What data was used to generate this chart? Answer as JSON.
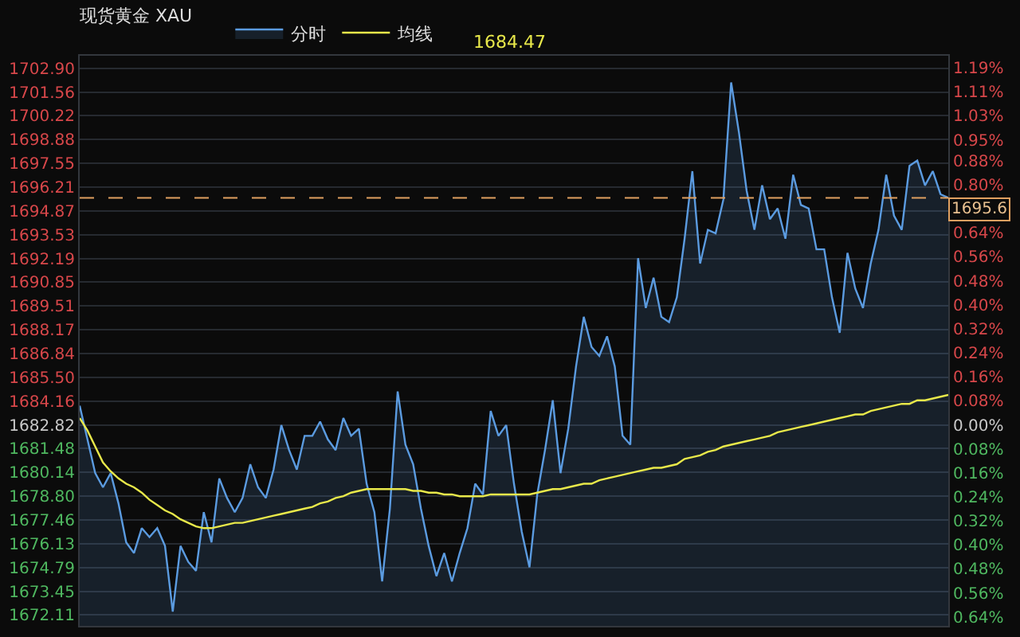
{
  "chart_data": {
    "type": "area",
    "title": "现货黄金 XAU",
    "annotations": [
      "1684.47"
    ],
    "categories": [
      null,
      null,
      null,
      null,
      null,
      null,
      null,
      null,
      null,
      null,
      null,
      null,
      null,
      null,
      null,
      null,
      null,
      null,
      null,
      null,
      null,
      null,
      null,
      null,
      null,
      null,
      null,
      null,
      null,
      null,
      null,
      null,
      null,
      null,
      null,
      null,
      null,
      null,
      null,
      null,
      null,
      null,
      null,
      null,
      null,
      null,
      null,
      null,
      null,
      null,
      null,
      null,
      null,
      null,
      null,
      null,
      null,
      null,
      null,
      null,
      null,
      null,
      null,
      null,
      null,
      null,
      null,
      null,
      null,
      null,
      null,
      null,
      null,
      null,
      null,
      null,
      null,
      null,
      null,
      null,
      null,
      null,
      null,
      null,
      null,
      null,
      null,
      null,
      null,
      null,
      null,
      null,
      null,
      null,
      null,
      null,
      null,
      null,
      null,
      null,
      null,
      null,
      null,
      null,
      null,
      null,
      null,
      null,
      null,
      null,
      null,
      null,
      null
    ],
    "series": [
      {
        "name": "分时",
        "color": "#5b9be0",
        "values": [
          1683.9,
          1682.0,
          1680.1,
          1679.3,
          1680.1,
          1678.4,
          1676.2,
          1675.6,
          1677.0,
          1676.5,
          1677.0,
          1676.0,
          1672.3,
          1676.0,
          1675.1,
          1674.6,
          1677.9,
          1676.2,
          1679.8,
          1678.7,
          1677.9,
          1678.7,
          1680.6,
          1679.3,
          1678.7,
          1680.3,
          1682.8,
          1681.4,
          1680.3,
          1682.2,
          1682.2,
          1683.0,
          1682.0,
          1681.4,
          1683.2,
          1682.2,
          1682.6,
          1679.5,
          1677.9,
          1674.0,
          1678.1,
          1684.7,
          1681.7,
          1680.6,
          1678.1,
          1676.0,
          1674.3,
          1675.6,
          1674.0,
          1675.6,
          1677.0,
          1679.5,
          1678.9,
          1683.6,
          1682.2,
          1682.8,
          1679.5,
          1676.8,
          1674.8,
          1678.9,
          1681.4,
          1684.2,
          1680.1,
          1682.6,
          1686.1,
          1688.9,
          1687.2,
          1686.7,
          1687.8,
          1686.1,
          1682.2,
          1681.7,
          1692.2,
          1689.4,
          1691.1,
          1688.9,
          1688.6,
          1690.0,
          1693.3,
          1697.1,
          1691.9,
          1693.8,
          1693.6,
          1695.5,
          1702.1,
          1699.3,
          1696.0,
          1693.8,
          1696.3,
          1694.4,
          1695.0,
          1693.3,
          1696.9,
          1695.2,
          1695.0,
          1692.7,
          1692.7,
          1690.0,
          1688.0,
          1692.5,
          1690.5,
          1689.4,
          1691.9,
          1693.8,
          1696.9,
          1694.6,
          1693.8,
          1697.4,
          1697.7,
          1696.3,
          1697.1,
          1695.8,
          1695.6
        ]
      },
      {
        "name": "均线",
        "type": "line",
        "color": "#e8e84a",
        "values": [
          1683.2,
          1682.5,
          1681.6,
          1680.7,
          1680.2,
          1679.8,
          1679.5,
          1679.3,
          1679.0,
          1678.6,
          1678.3,
          1678.0,
          1677.8,
          1677.5,
          1677.3,
          1677.1,
          1677.0,
          1677.0,
          1677.1,
          1677.2,
          1677.3,
          1677.3,
          1677.4,
          1677.5,
          1677.6,
          1677.7,
          1677.8,
          1677.9,
          1678.0,
          1678.1,
          1678.2,
          1678.4,
          1678.5,
          1678.7,
          1678.8,
          1679.0,
          1679.1,
          1679.2,
          1679.2,
          1679.2,
          1679.2,
          1679.2,
          1679.2,
          1679.1,
          1679.1,
          1679.0,
          1679.0,
          1678.9,
          1678.9,
          1678.8,
          1678.8,
          1678.8,
          1678.8,
          1678.9,
          1678.9,
          1678.9,
          1678.9,
          1678.9,
          1678.9,
          1679.0,
          1679.1,
          1679.2,
          1679.2,
          1679.3,
          1679.4,
          1679.5,
          1679.5,
          1679.7,
          1679.8,
          1679.9,
          1680.0,
          1680.1,
          1680.2,
          1680.3,
          1680.4,
          1680.4,
          1680.5,
          1680.6,
          1680.9,
          1681.0,
          1681.1,
          1681.3,
          1681.4,
          1681.6,
          1681.7,
          1681.8,
          1681.9,
          1682.0,
          1682.1,
          1682.2,
          1682.4,
          1682.5,
          1682.6,
          1682.7,
          1682.8,
          1682.9,
          1683.0,
          1683.1,
          1683.2,
          1683.3,
          1683.4,
          1683.4,
          1683.6,
          1683.7,
          1683.8,
          1683.9,
          1684.0,
          1684.0,
          1684.2,
          1684.2,
          1684.3,
          1684.4,
          1684.5
        ]
      }
    ],
    "ylim": [
      1671.5,
      1703.6
    ],
    "yticks": [
      {
        "value": 1702.9,
        "label": "1702.90"
      },
      1701.56,
      1700.22,
      1698.88,
      1697.55,
      1696.21,
      1694.87,
      1693.53,
      1692.19,
      1690.85,
      1689.51,
      1688.17,
      1686.84,
      {
        "value": 1685.5,
        "label": "1685.50"
      },
      1684.16,
      1682.82,
      1681.48,
      1680.14,
      {
        "value": 1678.8,
        "label": "1678.80"
      },
      1677.46,
      1676.13,
      1674.79,
      1673.45,
      1672.11
    ],
    "y2lim": [
      -0.67,
      1.23
    ],
    "y2ticks": [
      {
        "value": 1.19,
        "label": "1.19%"
      },
      {
        "value": 1.11,
        "label": "1.11%"
      },
      {
        "value": 1.03,
        "label": "1.03%"
      },
      {
        "value": 0.95,
        "label": "0.95%"
      },
      {
        "value": 0.88,
        "label": "0.88%"
      },
      {
        "value": 0.8,
        "label": "0.80%"
      },
      {
        "value": 0.64,
        "label": "0.64%"
      },
      {
        "value": 0.56,
        "label": "0.56%"
      },
      {
        "value": 0.48,
        "label": "0.48%"
      },
      {
        "value": 0.4,
        "label": "0.40%"
      },
      {
        "value": 0.32,
        "label": "0.32%"
      },
      {
        "value": 0.24,
        "label": "0.24%"
      },
      {
        "value": 0.16,
        "label": "0.16%"
      },
      {
        "value": 0.08,
        "label": "0.08%"
      },
      {
        "value": 0,
        "label": "0.00%"
      },
      {
        "value": -0.08,
        "label": "0.08%"
      },
      {
        "value": -0.16,
        "label": "0.16%"
      },
      {
        "value": -0.24,
        "label": "0.24%"
      },
      {
        "value": -0.32,
        "label": "0.32%"
      },
      {
        "value": -0.4,
        "label": "0.40%"
      },
      {
        "value": -0.48,
        "label": "0.48%"
      },
      {
        "value": -0.56,
        "label": "0.56%"
      },
      {
        "value": -0.64,
        "label": "0.64%"
      }
    ],
    "ref_lines": [
      {
        "axis": "y",
        "value": 1695.6,
        "label": "1695.6",
        "color": "#e0a060",
        "line_style": "dashed"
      }
    ],
    "grid": "y",
    "legend": "top left",
    "marker": "none",
    "tick_labels": "y"
  }
}
